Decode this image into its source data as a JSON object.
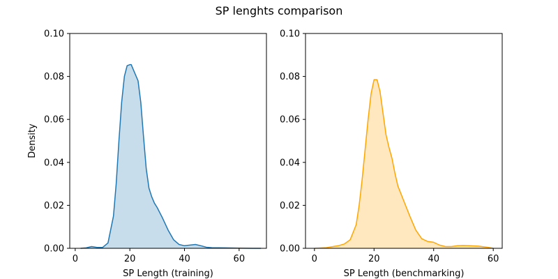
{
  "figure": {
    "title": "SP lenghts comparison"
  },
  "chart_data": [
    {
      "type": "area",
      "kind": "kde",
      "xlabel": "SP Length (training)",
      "ylabel": "Density",
      "xlim": [
        -2,
        70
      ],
      "ylim": [
        0,
        0.1
      ],
      "xticks": [
        0,
        20,
        40,
        60
      ],
      "yticks": [
        0.0,
        0.02,
        0.04,
        0.06,
        0.08,
        0.1
      ],
      "ytick_labels": [
        "0.00",
        "0.02",
        "0.04",
        "0.06",
        "0.08",
        "0.10"
      ],
      "grid": false,
      "colors": {
        "line": "#1f77b4",
        "fill": "#1f77b4"
      },
      "x": [
        2,
        4,
        6,
        8,
        10,
        12,
        14,
        15,
        16,
        17,
        18,
        19,
        20,
        20.5,
        21,
        22,
        23,
        24,
        25,
        26,
        27,
        28,
        29,
        30,
        31,
        32,
        34,
        36,
        38,
        40,
        42,
        44,
        46,
        48,
        50,
        55,
        60,
        65,
        68
      ],
      "y": [
        0.0,
        0.0002,
        0.0008,
        0.0004,
        0.0004,
        0.0025,
        0.015,
        0.03,
        0.05,
        0.068,
        0.08,
        0.085,
        0.0855,
        0.0855,
        0.084,
        0.081,
        0.078,
        0.068,
        0.052,
        0.037,
        0.028,
        0.024,
        0.021,
        0.019,
        0.0165,
        0.014,
        0.0085,
        0.004,
        0.0018,
        0.0012,
        0.0015,
        0.0018,
        0.0012,
        0.0005,
        0.0003,
        0.0002,
        0.0001,
        0.0,
        0.0
      ]
    },
    {
      "type": "area",
      "kind": "kde",
      "xlabel": "SP Length (benchmarking)",
      "ylabel": "",
      "xlim": [
        -3,
        63
      ],
      "ylim": [
        0,
        0.1
      ],
      "xticks": [
        0,
        20,
        40,
        60
      ],
      "yticks": [
        0.0,
        0.02,
        0.04,
        0.06,
        0.08,
        0.1
      ],
      "ytick_labels": [
        "0.00",
        "0.02",
        "0.04",
        "0.06",
        "0.08",
        "0.10"
      ],
      "grid": false,
      "colors": {
        "line": "#ffa500",
        "fill": "#ffa500"
      },
      "x": [
        0,
        4,
        8,
        10,
        12,
        14,
        15,
        16,
        17,
        18,
        19,
        20,
        21,
        22,
        23,
        24,
        25,
        26,
        27,
        28,
        29,
        30,
        31,
        32,
        34,
        36,
        38,
        40,
        42,
        44,
        46,
        48,
        50,
        52,
        55,
        58,
        60
      ],
      "y": [
        0.0,
        0.0003,
        0.0012,
        0.002,
        0.004,
        0.011,
        0.02,
        0.032,
        0.046,
        0.06,
        0.072,
        0.0785,
        0.0785,
        0.073,
        0.063,
        0.053,
        0.047,
        0.042,
        0.035,
        0.029,
        0.0255,
        0.022,
        0.0185,
        0.015,
        0.0085,
        0.0045,
        0.0032,
        0.0028,
        0.0015,
        0.0008,
        0.0008,
        0.0012,
        0.0013,
        0.0012,
        0.001,
        0.0005,
        0.0
      ]
    }
  ]
}
